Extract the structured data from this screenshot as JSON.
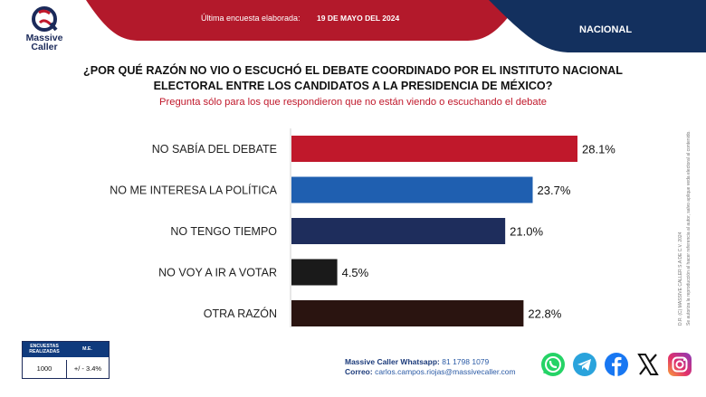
{
  "header": {
    "label": "Última encuesta elaborada:",
    "date": "19 DE MAYO DEL 2024",
    "region": "NACIONAL"
  },
  "brand": {
    "name_line1": "Massive",
    "name_line2": "Caller"
  },
  "question": {
    "title_line1": "¿POR QUÉ RAZÓN NO VIO O ESCUCHÓ EL DEBATE COORDINADO POR EL INSTITUTO NACIONAL",
    "title_line2": "ELECTORAL ENTRE LOS CANDIDATOS A LA PRESIDENCIA DE MÉXICO?",
    "note": "Pregunta sólo para los que respondieron que no están viendo o escuchando el debate"
  },
  "chart_data": {
    "type": "bar",
    "orientation": "horizontal",
    "categories": [
      "NO SABÍA DEL DEBATE",
      "NO ME INTERESA LA POLÍTICA",
      "NO TENGO TIEMPO",
      "NO VOY A IR A VOTAR",
      "OTRA RAZÓN"
    ],
    "values": [
      28.1,
      23.7,
      21.0,
      4.5,
      22.8
    ],
    "value_labels": [
      "28.1%",
      "23.7%",
      "21.0%",
      "4.5%",
      "22.8%"
    ],
    "colors": [
      "#c0182b",
      "#1f5fb0",
      "#1e2d5c",
      "#1a1a1a",
      "#2a1410"
    ],
    "xlim": [
      0,
      28.1
    ],
    "grid": false,
    "legend": "none"
  },
  "legal": {
    "line1": "D.R. (C) MASSIVE CALLER S.A DE C.V. 2024",
    "line2": "Se autoriza la reproducción al hacer referencia al autor, salvo aplique veda electoral al contenido."
  },
  "sample": {
    "col1_header": "ENCUESTAS REALIZADAS",
    "col2_header": "M.E.",
    "col1_value": "1000",
    "col2_value": "+/ - 3.4%"
  },
  "contact": {
    "whatsapp_label": "Massive Caller Whatsapp:",
    "whatsapp_value": "81 1798 1079",
    "email_label": "Correo:",
    "email_value": "carlos.campos.riojas@massivecaller.com"
  },
  "social": [
    "whatsapp-icon",
    "telegram-icon",
    "facebook-icon",
    "x-icon",
    "instagram-icon"
  ]
}
